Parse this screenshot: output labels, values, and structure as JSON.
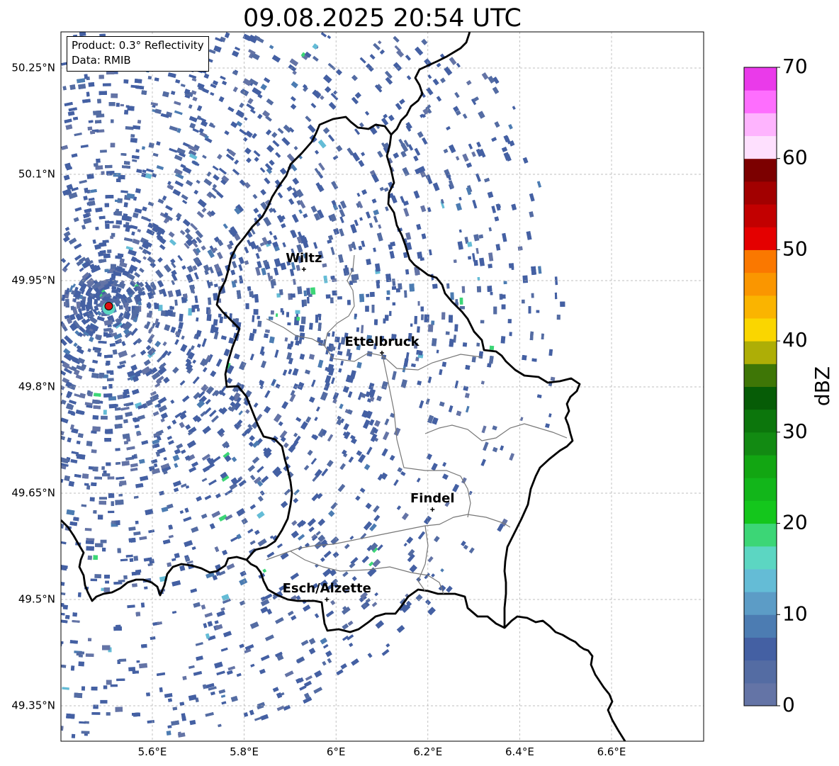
{
  "title": "09.08.2025 20:54 UTC",
  "info": {
    "product": "Product: 0.3° Reflectivity",
    "data": "Data: RMIB"
  },
  "axes": {
    "lon_ticks": [
      "5.6°E",
      "5.8°E",
      "6°E",
      "6.2°E",
      "6.4°E",
      "6.6°E"
    ],
    "lat_ticks": [
      "50.25°N",
      "50.1°N",
      "49.95°N",
      "49.8°N",
      "49.65°N",
      "49.5°N",
      "49.35°N"
    ]
  },
  "cities": [
    {
      "name": "Wiltz",
      "lon": 5.93,
      "lat": 49.966
    },
    {
      "name": "Ettelbruck",
      "lon": 6.1,
      "lat": 49.848
    },
    {
      "name": "Findel",
      "lon": 6.21,
      "lat": 49.627
    },
    {
      "name": "Esch/Alzette",
      "lon": 5.98,
      "lat": 49.5
    }
  ],
  "radar_site": {
    "lon": 5.505,
    "lat": 49.914,
    "color": "#dd1111"
  },
  "colorbar": {
    "label": "dBZ",
    "min": 0,
    "max": 70,
    "ticks": [
      "0",
      "10",
      "20",
      "30",
      "40",
      "50",
      "60",
      "70"
    ],
    "colors": [
      "#6474a6",
      "#546ca3",
      "#4460a3",
      "#4c7cb2",
      "#5c9cc6",
      "#64bcd6",
      "#5cd6c2",
      "#3cd676",
      "#14c61c",
      "#12b61a",
      "#12a612",
      "#128a12",
      "#0c760c",
      "#065c06",
      "#3e7606",
      "#aeae06",
      "#fad600",
      "#fab400",
      "#fa9600",
      "#fa7800",
      "#e40000",
      "#c20000",
      "#a20000",
      "#7c0000",
      "#fee0fe",
      "#feb4fe",
      "#fe6efe",
      "#ea3aea"
    ]
  }
}
